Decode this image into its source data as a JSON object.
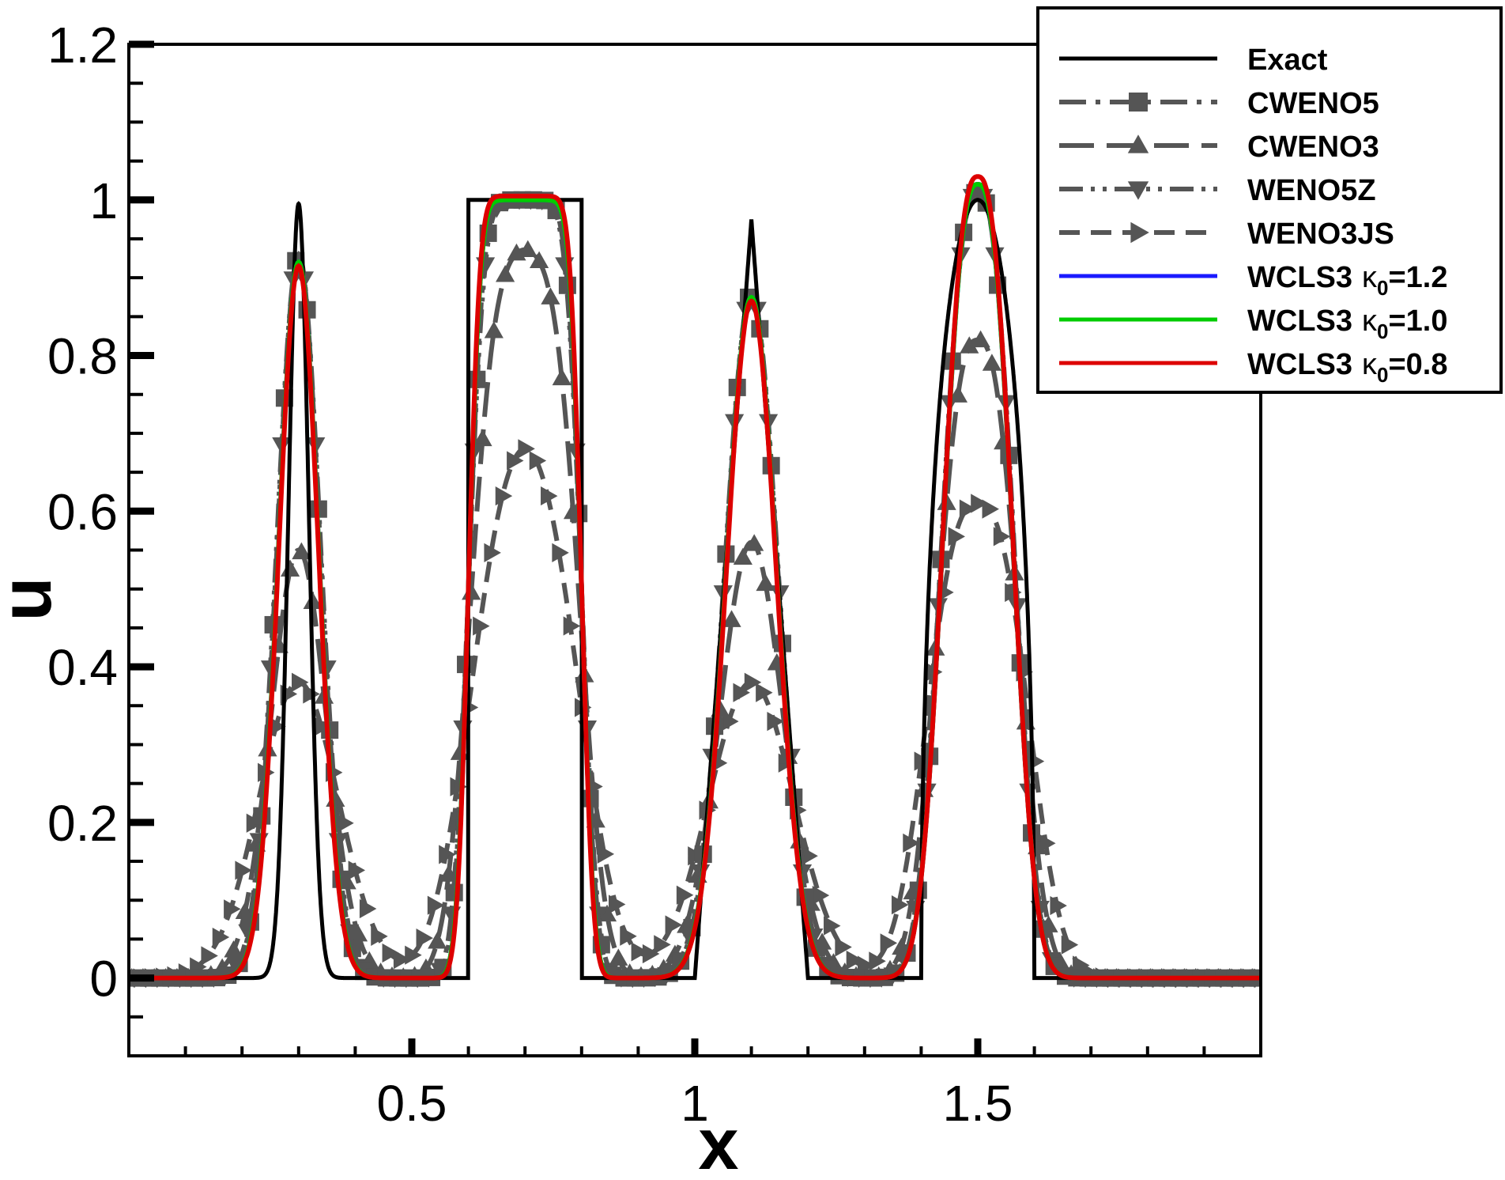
{
  "chart_data": {
    "type": "line",
    "title": "",
    "xlabel": "x",
    "ylabel": "u",
    "xlim": [
      0,
      2
    ],
    "ylim": [
      -0.1,
      1.2
    ],
    "x_ticks": [
      {
        "value": 0.5,
        "label": "0.5"
      },
      {
        "value": 1.0,
        "label": "1"
      },
      {
        "value": 1.5,
        "label": "1.5"
      }
    ],
    "y_ticks": [
      {
        "value": 0,
        "label": "0"
      },
      {
        "value": 0.2,
        "label": "0.2"
      },
      {
        "value": 0.4,
        "label": "0.4"
      },
      {
        "value": 0.6,
        "label": "0.6"
      },
      {
        "value": 0.8,
        "label": "0.8"
      },
      {
        "value": 1.0,
        "label": "1"
      },
      {
        "value": 1.2,
        "label": "1.2"
      }
    ],
    "legend_position": "top-right",
    "legend": [
      {
        "id": "exact",
        "label": "Exact",
        "color": "#000000",
        "dash": "solid",
        "marker": "none"
      },
      {
        "id": "cweno5",
        "label": "CWENO5",
        "color": "#555555",
        "dash": "dashdot",
        "marker": "square"
      },
      {
        "id": "cweno3",
        "label": "CWENO3",
        "color": "#555555",
        "dash": "longdash",
        "marker": "triangle-up"
      },
      {
        "id": "weno5z",
        "label": "WENO5Z",
        "color": "#555555",
        "dash": "dashdotdot",
        "marker": "triangle-down"
      },
      {
        "id": "weno3js",
        "label": "WENO3JS",
        "color": "#555555",
        "dash": "dash",
        "marker": "triangle-right"
      },
      {
        "id": "wcls3_12",
        "label": "WCLS3",
        "kappa": "κ",
        "sub": "0",
        "value": "=1.2",
        "color": "#1a1aff",
        "dash": "solid",
        "marker": "none"
      },
      {
        "id": "wcls3_10",
        "label": "WCLS3",
        "kappa": "κ",
        "sub": "0",
        "value": "=1.0",
        "color": "#00cc00",
        "dash": "solid",
        "marker": "none"
      },
      {
        "id": "wcls3_08",
        "label": "WCLS3",
        "kappa": "κ",
        "sub": "0",
        "value": "=0.8",
        "color": "#dd0000",
        "dash": "solid",
        "marker": "none"
      }
    ],
    "features": [
      {
        "name": "gaussian",
        "x0": 0.2,
        "x1": 0.4,
        "center": 0.3
      },
      {
        "name": "square",
        "x0": 0.6,
        "x1": 0.8
      },
      {
        "name": "triangle",
        "x0": 1.0,
        "x1": 1.2,
        "center": 1.1
      },
      {
        "name": "half-ellipse",
        "x0": 1.4,
        "x1": 1.6,
        "center": 1.5
      }
    ],
    "series_parameters": [
      {
        "id": "cweno5",
        "peaks": [
          0.93,
          1.0,
          0.88,
          1.01
        ],
        "smear": 0.032,
        "marker_spacing": 0.02
      },
      {
        "id": "cweno3",
        "peaks": [
          0.55,
          0.94,
          0.56,
          0.82
        ],
        "smear": 0.055,
        "marker_spacing": 0.02
      },
      {
        "id": "weno5z",
        "peaks": [
          0.93,
          1.0,
          0.88,
          1.01
        ],
        "smear": 0.034,
        "marker_spacing": 0.02
      },
      {
        "id": "weno3js",
        "peaks": [
          0.38,
          0.74,
          0.38,
          0.61
        ],
        "smear": 0.09,
        "marker_spacing": 0.02
      },
      {
        "id": "wcls3_12",
        "peaks": [
          0.92,
          1.0,
          0.875,
          1.02
        ],
        "smear": 0.026
      },
      {
        "id": "wcls3_10",
        "peaks": [
          0.92,
          1.0,
          0.875,
          1.02
        ],
        "smear": 0.026
      },
      {
        "id": "wcls3_08",
        "peaks": [
          0.915,
          1.005,
          0.87,
          1.03
        ],
        "smear": 0.025
      }
    ]
  }
}
